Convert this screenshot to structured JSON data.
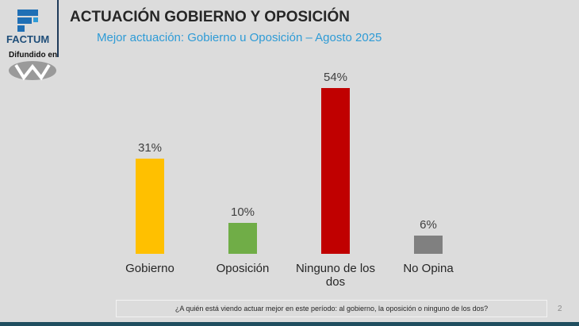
{
  "header": {
    "logo": "FACTUM",
    "broadcast": "Difundido en"
  },
  "chart_data": {
    "type": "bar",
    "title": "ACTUACIÓN GOBIERNO Y OPOSICIÓN",
    "subtitle": "Mejor actuación: Gobierno u Oposición – Agosto 2025",
    "categories": [
      "Gobierno",
      "Oposición",
      "Ninguno de los dos",
      "No Opina"
    ],
    "values": [
      31,
      10,
      54,
      6
    ],
    "value_labels": [
      "31%",
      "10%",
      "54%",
      "6%"
    ],
    "colors": [
      "#ffc000",
      "#70ad47",
      "#c00000",
      "#808080"
    ]
  },
  "footer": {
    "question": "¿A quién está viendo actuar mejor en este período: al gobierno, la oposición o ninguno de los dos?",
    "page_number": "2"
  }
}
